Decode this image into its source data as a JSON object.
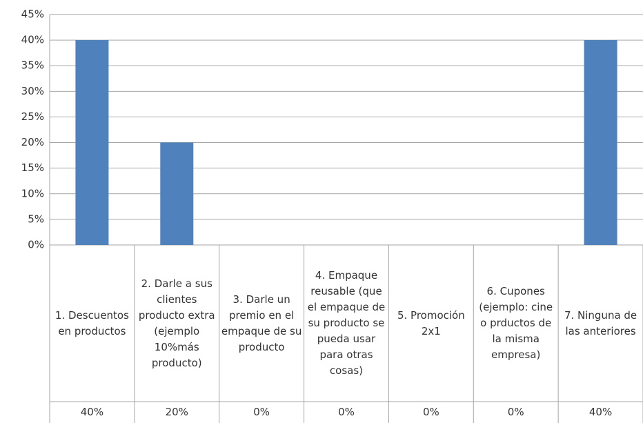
{
  "chart_data": {
    "type": "bar",
    "categories": [
      "1. Descuentos en productos",
      "2. Darle a sus clientes producto extra (ejemplo 10%más producto)",
      "3. Darle un premio en el empaque de su producto",
      "4. Empaque reusable (que el empaque de su producto se pueda usar para otras cosas)",
      "5. Promoción 2x1",
      "6. Cupones (ejemplo: cine o prductos de la misma empresa)",
      "7. Ninguna de las anteriores"
    ],
    "values": [
      40,
      20,
      0,
      0,
      0,
      0,
      40
    ],
    "value_labels": [
      "40%",
      "20%",
      "0%",
      "0%",
      "0%",
      "0%",
      "40%"
    ],
    "color": "#4f81bd",
    "ylim": [
      0,
      45
    ],
    "yticks": [
      {
        "value": 0,
        "label": "0%"
      },
      {
        "value": 5,
        "label": "5%"
      },
      {
        "value": 10,
        "label": "10%"
      },
      {
        "value": 15,
        "label": "15%"
      },
      {
        "value": 20,
        "label": "20%"
      },
      {
        "value": 25,
        "label": "25%"
      },
      {
        "value": 30,
        "label": "30%"
      },
      {
        "value": 35,
        "label": "35%"
      },
      {
        "value": 40,
        "label": "40%"
      },
      {
        "value": 45,
        "label": "45%"
      }
    ],
    "grid": true
  }
}
